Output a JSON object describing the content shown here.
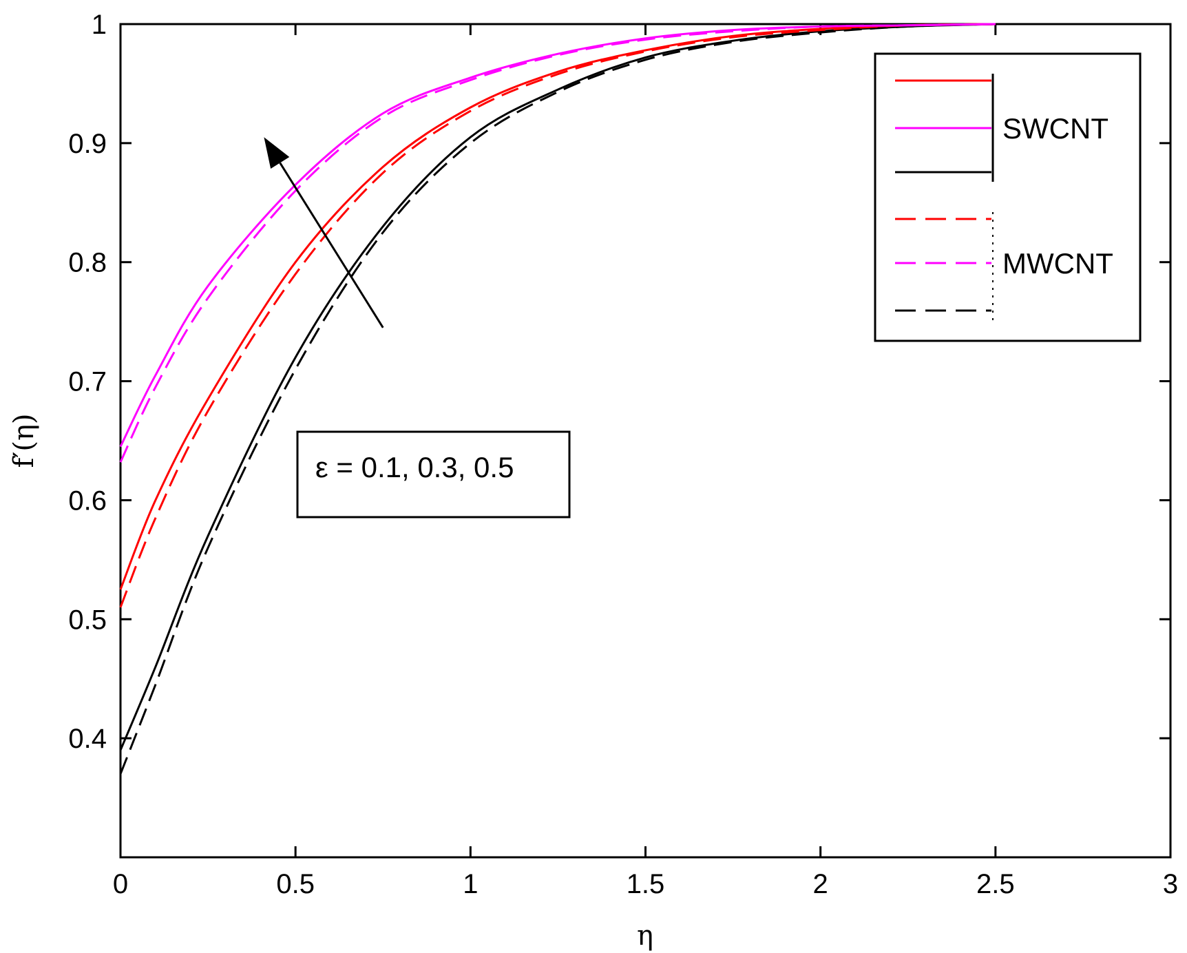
{
  "chart_data": {
    "type": "line",
    "xlabel": "η",
    "ylabel": "f′(η)",
    "xlim": [
      0,
      3
    ],
    "ylim": [
      0.3,
      1.0
    ],
    "x_ticks": [
      "0",
      "0.5",
      "1",
      "1.5",
      "2",
      "2.5",
      "3"
    ],
    "y_ticks": [
      "0.4",
      "0.5",
      "0.6",
      "0.7",
      "0.8",
      "0.9",
      "1"
    ],
    "grid": false,
    "legend": {
      "placement": "top-right",
      "groups": [
        {
          "label": "SWCNT",
          "line_style": "solid",
          "colors": [
            "#ff0000",
            "#ff00ff",
            "#000000"
          ]
        },
        {
          "label": "MWCNT",
          "line_style": "dashed",
          "colors": [
            "#ff0000",
            "#ff00ff",
            "#000000"
          ]
        }
      ]
    },
    "annotation": {
      "text": "ε = 0.1, 0.3, 0.5",
      "arrow": {
        "from": [
          0.75,
          0.745
        ],
        "to": [
          0.41,
          0.905
        ]
      }
    },
    "series": [
      {
        "group": "SWCNT",
        "color": "#000000",
        "dash": "solid",
        "x": [
          0,
          0.1,
          0.25,
          0.5,
          0.75,
          1,
          1.25,
          1.5,
          1.75,
          2,
          2.25,
          2.5
        ],
        "y": [
          0.39,
          0.46,
          0.57,
          0.72,
          0.83,
          0.905,
          0.945,
          0.972,
          0.986,
          0.994,
          0.998,
          1.0
        ]
      },
      {
        "group": "MWCNT",
        "color": "#000000",
        "dash": "dashed",
        "x": [
          0,
          0.1,
          0.25,
          0.5,
          0.75,
          1,
          1.25,
          1.5,
          1.75,
          2,
          2.25,
          2.5
        ],
        "y": [
          0.37,
          0.445,
          0.56,
          0.71,
          0.825,
          0.9,
          0.943,
          0.97,
          0.985,
          0.993,
          0.998,
          1.0
        ]
      },
      {
        "group": "SWCNT",
        "color": "#ff0000",
        "dash": "solid",
        "x": [
          0,
          0.1,
          0.25,
          0.5,
          0.75,
          1,
          1.25,
          1.5,
          1.75,
          2,
          2.25,
          2.5
        ],
        "y": [
          0.525,
          0.6,
          0.685,
          0.8,
          0.88,
          0.93,
          0.96,
          0.978,
          0.99,
          0.996,
          0.999,
          1.0
        ]
      },
      {
        "group": "MWCNT",
        "color": "#ff0000",
        "dash": "dashed",
        "x": [
          0,
          0.1,
          0.25,
          0.5,
          0.75,
          1,
          1.25,
          1.5,
          1.75,
          2,
          2.25,
          2.5
        ],
        "y": [
          0.51,
          0.585,
          0.675,
          0.79,
          0.875,
          0.927,
          0.958,
          0.977,
          0.989,
          0.995,
          0.999,
          1.0
        ]
      },
      {
        "group": "SWCNT",
        "color": "#ff00ff",
        "dash": "solid",
        "x": [
          0,
          0.1,
          0.25,
          0.5,
          0.75,
          1,
          1.25,
          1.5,
          1.75,
          2,
          2.25,
          2.5
        ],
        "y": [
          0.645,
          0.705,
          0.78,
          0.865,
          0.925,
          0.955,
          0.975,
          0.988,
          0.995,
          0.998,
          0.999,
          1.0
        ]
      },
      {
        "group": "MWCNT",
        "color": "#ff00ff",
        "dash": "dashed",
        "x": [
          0,
          0.1,
          0.25,
          0.5,
          0.75,
          1,
          1.25,
          1.5,
          1.75,
          2,
          2.25,
          2.5
        ],
        "y": [
          0.632,
          0.695,
          0.77,
          0.86,
          0.922,
          0.953,
          0.974,
          0.987,
          0.994,
          0.998,
          0.999,
          1.0
        ]
      }
    ]
  }
}
